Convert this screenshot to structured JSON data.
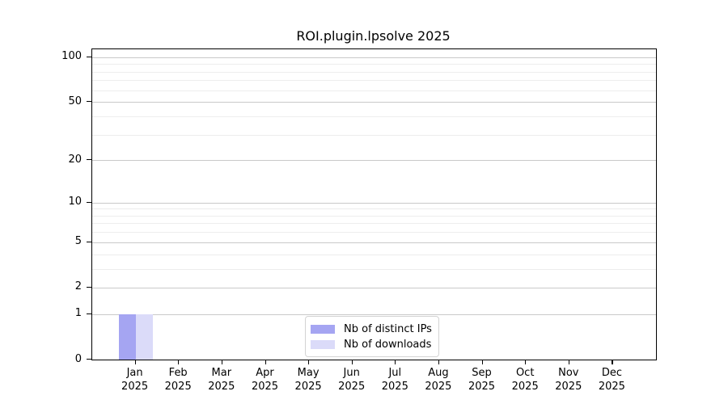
{
  "title": "ROI.plugin.lpsolve 2025",
  "chart_data": {
    "type": "bar",
    "title": "ROI.plugin.lpsolve 2025",
    "xlabel": "",
    "ylabel": "",
    "x": {
      "months": [
        "Jan",
        "Feb",
        "Mar",
        "Apr",
        "May",
        "Jun",
        "Jul",
        "Aug",
        "Sep",
        "Oct",
        "Nov",
        "Dec"
      ],
      "year_label": "2025"
    },
    "series": [
      {
        "name": "Nb of distinct IPs",
        "color": "#a5a5f2",
        "values": [
          1,
          0,
          0,
          0,
          0,
          0,
          0,
          0,
          0,
          0,
          0,
          0
        ]
      },
      {
        "name": "Nb of downloads",
        "color": "#dbdbf9",
        "values": [
          1,
          0,
          0,
          0,
          0,
          0,
          0,
          0,
          0,
          0,
          0,
          0
        ]
      }
    ],
    "y_axis": {
      "scale": "log1p",
      "ticks": [
        0,
        1,
        2,
        5,
        10,
        20,
        50,
        100
      ],
      "minor_gridlines": [
        3,
        4,
        6,
        7,
        8,
        9,
        30,
        40,
        60,
        70,
        80,
        90
      ],
      "top_value": 113
    },
    "legend": {
      "position": "inside-bottom-center",
      "entries": [
        "Nb of distinct IPs",
        "Nb of downloads"
      ]
    },
    "grid": {
      "horizontal": true
    },
    "colors": {
      "major_grid": "#c9c9c9",
      "minor_grid": "#ededed",
      "axis": "#000000",
      "text": "#000000"
    }
  }
}
